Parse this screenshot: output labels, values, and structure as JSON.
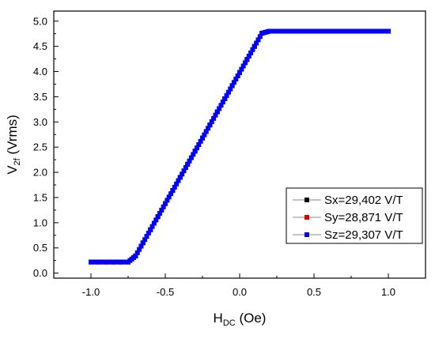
{
  "chart_data": {
    "type": "scatter",
    "xlabel": {
      "main": "H",
      "sub": "DC",
      "unit": " (Oe)"
    },
    "ylabel": {
      "main": "V",
      "sub": "2f",
      "unit": " (Vrms)"
    },
    "xlim": [
      -1.25,
      1.25
    ],
    "ylim": [
      -0.1,
      5.2
    ],
    "x_ticks": [
      -1.0,
      -0.5,
      0.0,
      0.5,
      1.0
    ],
    "x_tick_labels": [
      "-1.0",
      "-0.5",
      "0.0",
      "0.5",
      "1.0"
    ],
    "y_ticks": [
      0.0,
      0.5,
      1.0,
      1.5,
      2.0,
      2.5,
      3.0,
      3.5,
      4.0,
      4.5,
      5.0
    ],
    "y_tick_labels": [
      "0.0",
      "0.5",
      "1.0",
      "1.5",
      "2.0",
      "2.5",
      "3.0",
      "3.5",
      "4.0",
      "4.5",
      "5.0"
    ],
    "grid": false,
    "legend_position": "bottom-right",
    "x": [
      -1.0,
      -0.95,
      -0.9,
      -0.85,
      -0.8,
      -0.75,
      -0.7,
      -0.65,
      -0.6,
      -0.55,
      -0.5,
      -0.45,
      -0.4,
      -0.35,
      -0.3,
      -0.25,
      -0.2,
      -0.15,
      -0.1,
      -0.05,
      0.0,
      0.05,
      0.1,
      0.15,
      0.2,
      0.25,
      0.3,
      0.35,
      0.4,
      0.45,
      0.5,
      0.55,
      0.6,
      0.65,
      0.7,
      0.75,
      0.8,
      0.85,
      0.9,
      0.95,
      1.0
    ],
    "series": [
      {
        "name": "Sx=29,402 V/T",
        "color": "#000000",
        "values": [
          0.22,
          0.22,
          0.22,
          0.22,
          0.22,
          0.22,
          0.34,
          0.6,
          0.86,
          1.12,
          1.38,
          1.64,
          1.9,
          2.16,
          2.42,
          2.68,
          2.94,
          3.2,
          3.46,
          3.72,
          3.98,
          4.24,
          4.5,
          4.76,
          4.8,
          4.8,
          4.8,
          4.8,
          4.8,
          4.8,
          4.8,
          4.8,
          4.8,
          4.8,
          4.8,
          4.8,
          4.8,
          4.8,
          4.8,
          4.8,
          4.8
        ]
      },
      {
        "name": "Sy=28,871 V/T",
        "color": "#e00000",
        "values": []
      },
      {
        "name": "Sz=29,307 V/T",
        "color": "#0000ff",
        "values": []
      }
    ]
  }
}
